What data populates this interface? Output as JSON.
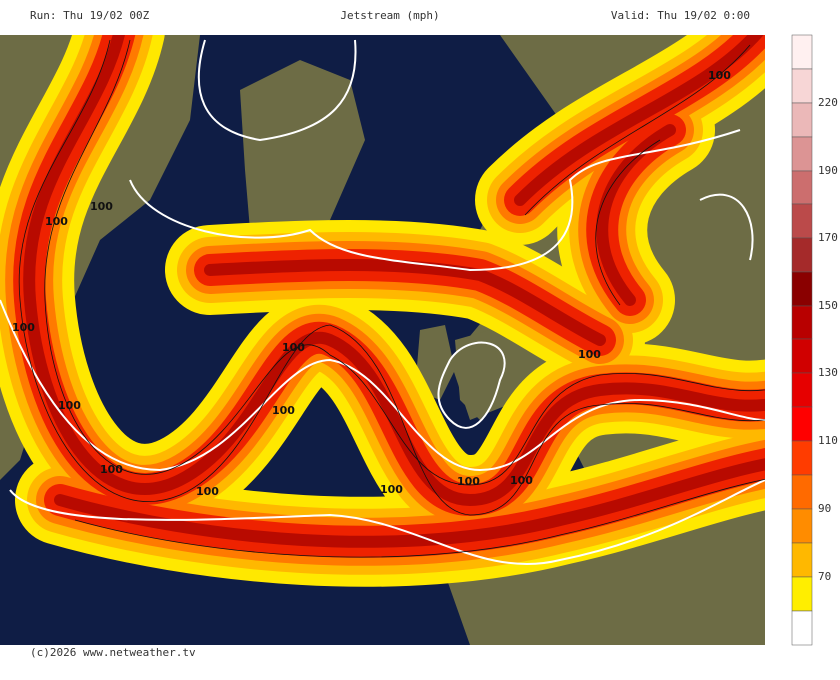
{
  "header": {
    "run": "Run: Thu 19/02 00Z",
    "title": "Jetstream (mph)",
    "valid": "Valid: Thu 19/02 0:00"
  },
  "footer": "(c)2026 www.netweather.tv",
  "legend": {
    "labels": [
      "220",
      "190",
      "170",
      "150",
      "130",
      "110",
      "90",
      "70"
    ]
  },
  "map": {
    "contour_labels": [
      "100",
      "100",
      "100",
      "100",
      "100",
      "100",
      "100",
      "100",
      "100",
      "100",
      "100",
      "100",
      "100"
    ]
  }
}
